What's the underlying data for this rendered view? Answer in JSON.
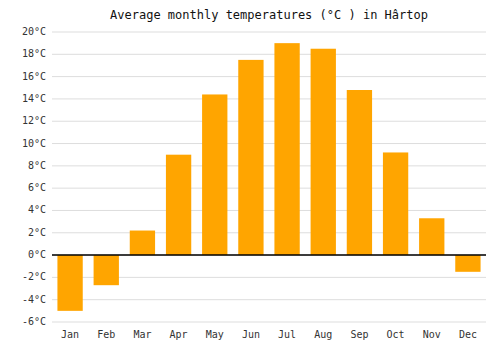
{
  "chart_data": {
    "type": "bar",
    "title": "Average monthly temperatures (°C ) in Hârtop",
    "categories": [
      "Jan",
      "Feb",
      "Mar",
      "Apr",
      "May",
      "Jun",
      "Jul",
      "Aug",
      "Sep",
      "Oct",
      "Nov",
      "Dec"
    ],
    "values": [
      -5.0,
      -2.7,
      2.2,
      9.0,
      14.4,
      17.5,
      19.0,
      18.5,
      14.8,
      9.2,
      3.3,
      -1.5
    ],
    "color": "#FFA500",
    "ylim": [
      -6,
      20
    ],
    "yticks": [
      {
        "value": -6,
        "label": "-6°C"
      },
      {
        "value": -4,
        "label": "-4°C"
      },
      {
        "value": -2,
        "label": "-2°C"
      },
      {
        "value": 0,
        "label": "0°C"
      },
      {
        "value": 2,
        "label": "2°C"
      },
      {
        "value": 4,
        "label": "4°C"
      },
      {
        "value": 6,
        "label": "6°C"
      },
      {
        "value": 8,
        "label": "8°C"
      },
      {
        "value": 10,
        "label": "10°C"
      },
      {
        "value": 12,
        "label": "12°C"
      },
      {
        "value": 14,
        "label": "14°C"
      },
      {
        "value": 16,
        "label": "16°C"
      },
      {
        "value": 18,
        "label": "18°C"
      },
      {
        "value": 20,
        "label": "20°C"
      }
    ],
    "grid": true
  }
}
